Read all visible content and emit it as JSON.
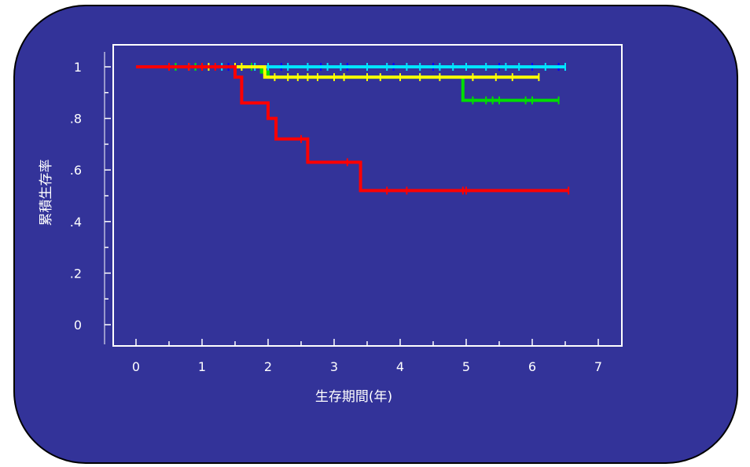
{
  "colors": {
    "background": "#333399",
    "axis": "#ffffff"
  },
  "chart_data": {
    "type": "line",
    "subtype": "kaplan-meier step",
    "title": "",
    "xlabel": "生存期間(年)",
    "ylabel": "累積生存率",
    "xlim": [
      0,
      7
    ],
    "ylim": [
      0,
      1
    ],
    "x_ticks": [
      0,
      1,
      2,
      3,
      4,
      5,
      6,
      7
    ],
    "x_tick_labels": [
      "0",
      "1",
      "2",
      "3",
      "4",
      "5",
      "6",
      "7"
    ],
    "y_ticks": [
      0,
      0.2,
      0.4,
      0.6,
      0.8,
      1
    ],
    "y_tick_labels": [
      "0",
      ".2",
      ".4",
      ".6",
      ".8",
      "1"
    ],
    "grid": false,
    "legend": "none",
    "series": [
      {
        "color": "#0000ff",
        "steps": [
          [
            0,
            1
          ],
          [
            6.5,
            1
          ]
        ],
        "censored": [
          1.4,
          2.2,
          2.8,
          3.2,
          3.9,
          4.5,
          5.0,
          5.5,
          6.0,
          6.4
        ]
      },
      {
        "color": "#00e5ff",
        "steps": [
          [
            0,
            1
          ],
          [
            6.5,
            1
          ]
        ],
        "censored": [
          0.6,
          0.9,
          1.3,
          1.8,
          2.0,
          2.3,
          2.6,
          2.9,
          3.1,
          3.5,
          3.8,
          4.1,
          4.3,
          4.6,
          4.8,
          5.0,
          5.3,
          5.6,
          5.8,
          6.2,
          6.5
        ]
      },
      {
        "color": "#00dd00",
        "steps": [
          [
            0,
            1
          ],
          [
            1.9,
            1
          ],
          [
            1.9,
            0.98
          ],
          [
            2.0,
            0.98
          ],
          [
            2.0,
            0.96
          ],
          [
            4.95,
            0.96
          ],
          [
            4.95,
            0.87
          ],
          [
            6.4,
            0.87
          ]
        ],
        "censored": [
          0.6,
          0.9,
          1.6,
          1.75,
          5.1,
          5.3,
          5.4,
          5.5,
          5.9,
          6.0,
          6.4
        ]
      },
      {
        "color": "#ffff00",
        "steps": [
          [
            0,
            1
          ],
          [
            1.95,
            1
          ],
          [
            1.95,
            0.96
          ],
          [
            6.1,
            0.96
          ]
        ],
        "censored": [
          0.8,
          1.1,
          1.5,
          1.6,
          2.1,
          2.3,
          2.45,
          2.6,
          2.75,
          3.0,
          3.15,
          3.5,
          3.7,
          4.0,
          4.3,
          4.6,
          5.1,
          5.45,
          5.7,
          6.1
        ]
      },
      {
        "color": "#ff0000",
        "steps": [
          [
            0,
            1
          ],
          [
            1.5,
            1
          ],
          [
            1.5,
            0.96
          ],
          [
            1.6,
            0.96
          ],
          [
            1.6,
            0.86
          ],
          [
            2.0,
            0.86
          ],
          [
            2.0,
            0.8
          ],
          [
            2.12,
            0.8
          ],
          [
            2.12,
            0.72
          ],
          [
            2.6,
            0.72
          ],
          [
            2.6,
            0.63
          ],
          [
            3.4,
            0.63
          ],
          [
            3.4,
            0.52
          ],
          [
            6.55,
            0.52
          ]
        ],
        "censored": [
          0.5,
          0.8,
          1.0,
          1.2,
          2.5,
          3.2,
          3.8,
          4.1,
          4.95,
          5.0,
          6.55
        ]
      }
    ]
  }
}
